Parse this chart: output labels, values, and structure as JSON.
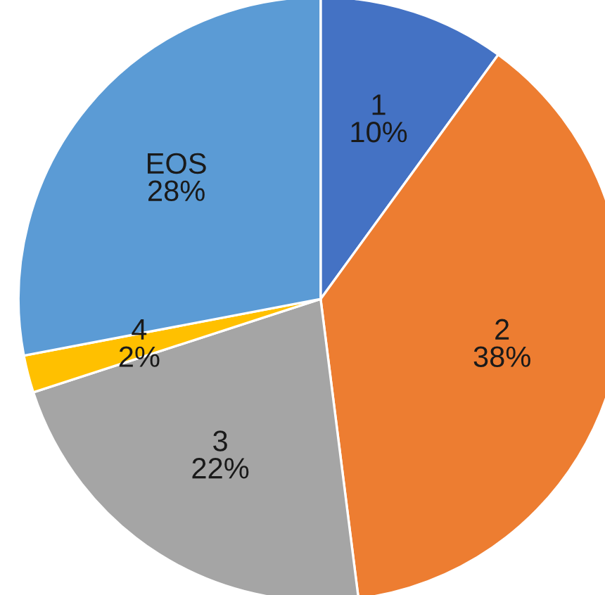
{
  "chart_data": {
    "type": "pie",
    "categories": [
      "1",
      "2",
      "3",
      "4",
      "EOS"
    ],
    "values": [
      10,
      38,
      22,
      2,
      28
    ],
    "value_labels": [
      "10%",
      "38%",
      "22%",
      "2%",
      "28%"
    ],
    "colors": [
      "#4472c4",
      "#ed7d31",
      "#a5a5a5",
      "#ffc000",
      "#5b9bd5"
    ],
    "legend": false
  }
}
